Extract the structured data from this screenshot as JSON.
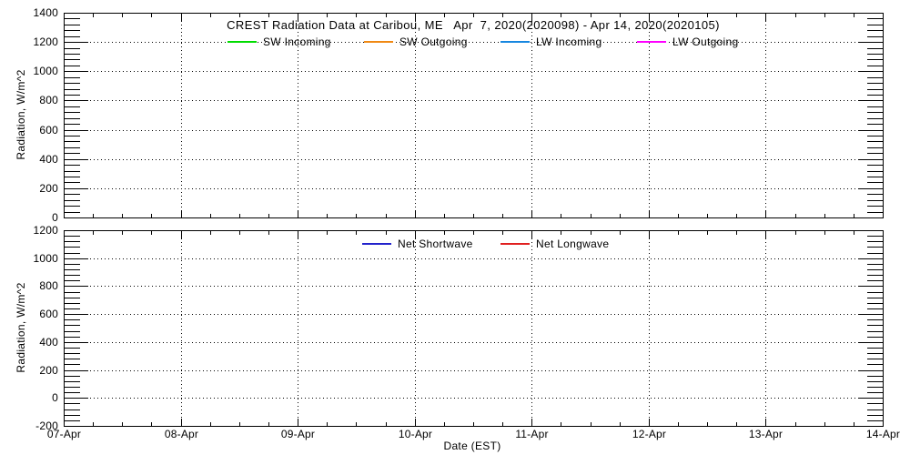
{
  "figure": {
    "background": "#FFFFFF",
    "axis_color": "#000000",
    "grid_style": "dotted"
  },
  "xaxis": {
    "label": "Date (EST)",
    "ticks": [
      "07-Apr",
      "08-Apr",
      "09-Apr",
      "10-Apr",
      "11-Apr",
      "12-Apr",
      "13-Apr",
      "14-Apr"
    ],
    "minor_subdivisions_per_day": 4
  },
  "chart_data": [
    {
      "type": "line",
      "title": "CREST Radiation Data at Caribou, ME   Apr  7, 2020(2020098) - Apr 14, 2020(2020105)",
      "ylabel": "Radiation, W/m^2",
      "ylim": [
        0,
        1400
      ],
      "ytick_interval": 200,
      "yminor_interval": 40,
      "yticks": [
        "0",
        "200",
        "400",
        "600",
        "800",
        "1000",
        "1200",
        "1400"
      ],
      "grid": "dotted",
      "legend_position": "inside-top",
      "series": [
        {
          "name": "SW Incoming",
          "color": "#00DC00",
          "values": []
        },
        {
          "name": "SW Outgoing",
          "color": "#F08913",
          "values": []
        },
        {
          "name": "LW Incoming",
          "color": "#1787E0",
          "values": []
        },
        {
          "name": "LW Outgoing",
          "color": "#FF00FF",
          "values": []
        }
      ]
    },
    {
      "type": "line",
      "title": "",
      "ylabel": "Radiation, W/m^2",
      "ylim": [
        -200,
        1200
      ],
      "ytick_interval": 200,
      "yminor_interval": 40,
      "yticks": [
        "-200",
        "0",
        "200",
        "400",
        "600",
        "800",
        "1000",
        "1200"
      ],
      "grid": "dotted",
      "legend_position": "inside-top",
      "series": [
        {
          "name": "Net Shortwave",
          "color": "#2222CC",
          "values": []
        },
        {
          "name": "Net Longwave",
          "color": "#E02020",
          "values": []
        }
      ]
    }
  ]
}
